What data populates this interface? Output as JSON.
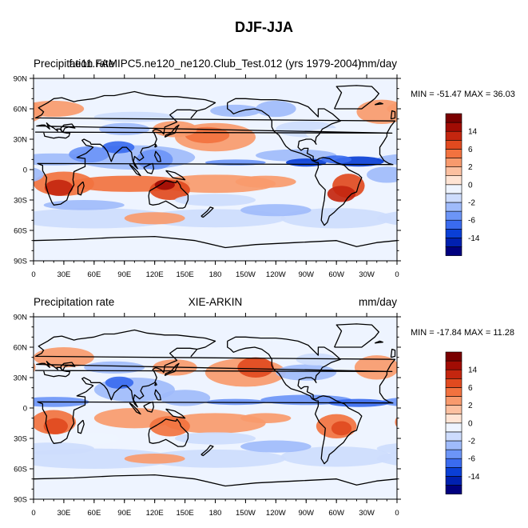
{
  "figure": {
    "title": "DJF-JJA"
  },
  "x_ticks": [
    "0",
    "30E",
    "60E",
    "90E",
    "120E",
    "150E",
    "180",
    "150W",
    "120W",
    "90W",
    "60W",
    "30W",
    "0"
  ],
  "y_ticks": [
    "90N",
    "60N",
    "30N",
    "0",
    "30S",
    "60S",
    "90S"
  ],
  "colorbar": {
    "colors": [
      "#00007f",
      "#0020b0",
      "#0a3fd6",
      "#3a6bef",
      "#6c95f7",
      "#9fbbfb",
      "#cddcfd",
      "#eef4ff",
      "#ffe4d4",
      "#fcc0a0",
      "#f89a6d",
      "#f2723f",
      "#e14a1f",
      "#c4260f",
      "#a10c04",
      "#7a0000"
    ],
    "labels": [
      "-14",
      "-6",
      "-2",
      "0",
      "2",
      "6",
      "14"
    ]
  },
  "panels": [
    {
      "left_label": "Precipitation rate",
      "center_label": "f.e11.FAMIPC5.ne120_ne120.Club_Test.012 (yrs 1979-2004)",
      "right_label": "mm/day",
      "stats": "MIN = -51.47 MAX =  36.03"
    },
    {
      "left_label": "Precipitation rate",
      "center_label": "XIE-ARKIN",
      "right_label": "mm/day",
      "stats": "MIN = -17.84 MAX =  11.28"
    }
  ]
}
